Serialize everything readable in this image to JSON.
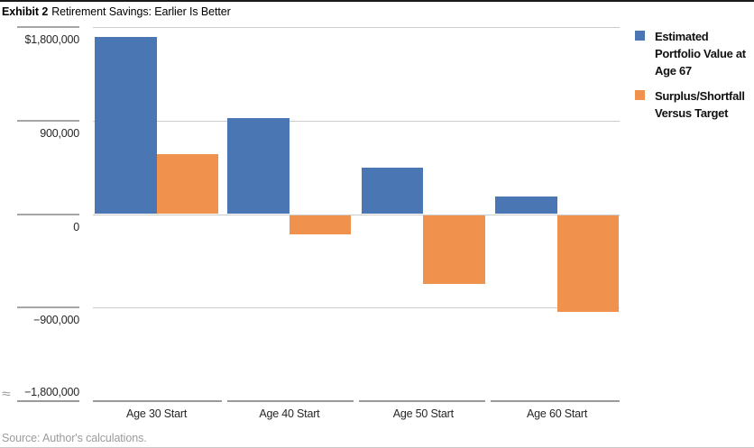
{
  "header": {
    "exhibit_label": "Exhibit 2",
    "title": "Retirement Savings: Earlier Is Better"
  },
  "footer": {
    "source": "Source: Author's calculations."
  },
  "colors": {
    "portfolio_blue": "#4a77b4",
    "surplus_orange": "#f0914d",
    "gridline": "#cccccc",
    "axis": "#9a9a9a"
  },
  "axis_break_symbol": "≈",
  "chart_data": {
    "type": "bar",
    "categories": [
      "Age 30 Start",
      "Age 40 Start",
      "Age 50 Start",
      "Age 60 Start"
    ],
    "series": [
      {
        "name": "Estimated Portfolio Value at Age 67",
        "color": "#4a77b4",
        "values": [
          1700000,
          920000,
          450000,
          165000
        ]
      },
      {
        "name": "Surplus/Shortfall Versus Target",
        "color": "#f0914d",
        "values": [
          580000,
          -190000,
          -665000,
          -930000
        ]
      }
    ],
    "y_ticks": [
      {
        "value": 1800000,
        "label": "$1,800,000"
      },
      {
        "value": 900000,
        "label": "900,000"
      },
      {
        "value": 0,
        "label": "0"
      },
      {
        "value": -900000,
        "label": "−900,000"
      },
      {
        "value": -1800000,
        "label": "−1,800,000"
      }
    ],
    "ylim": [
      -1800000,
      1800000
    ],
    "grid": true,
    "legend_position": "top-right",
    "legend": [
      {
        "label": "Estimated\nPortfolio Value at\nAge 67",
        "color": "#4a77b4"
      },
      {
        "label": "Surplus/Shortfall\nVersus Target",
        "color": "#f0914d"
      }
    ]
  }
}
